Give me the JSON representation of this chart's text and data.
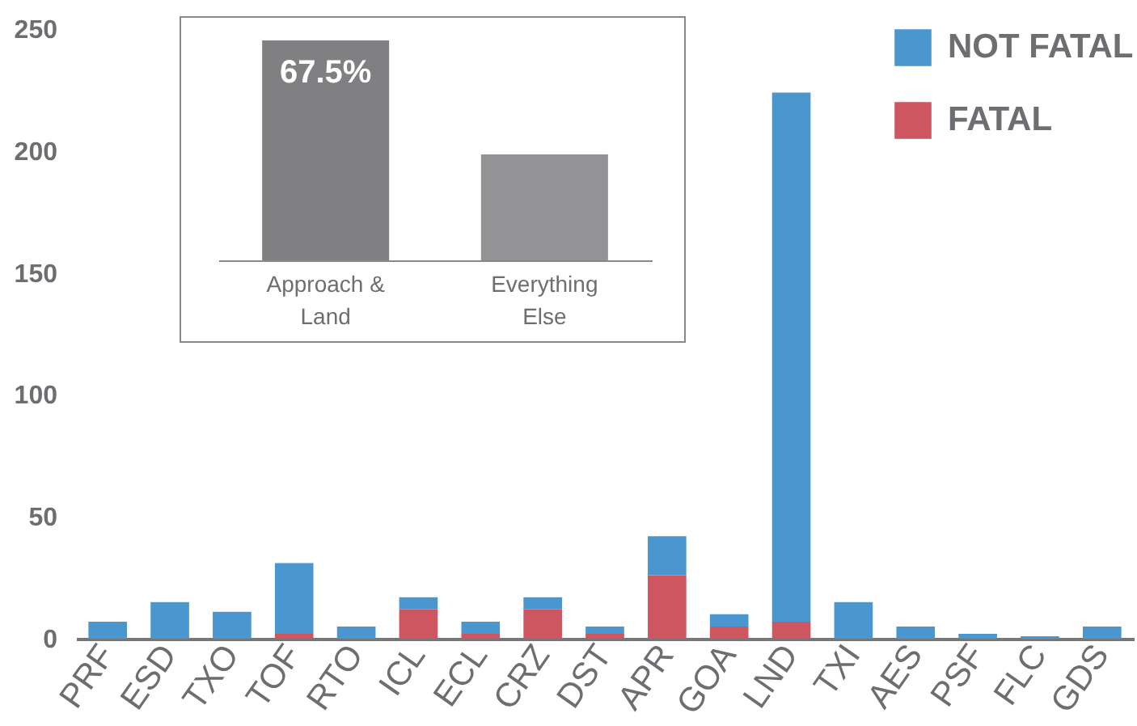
{
  "chart_data": [
    {
      "type": "bar",
      "stacked": true,
      "categories": [
        "PRF",
        "ESD",
        "TXO",
        "TOF",
        "RTO",
        "ICL",
        "ECL",
        "CRZ",
        "DST",
        "APR",
        "GOA",
        "LND",
        "TXI",
        "AES",
        "PSF",
        "FLC",
        "GDS"
      ],
      "series": [
        {
          "name": "FATAL",
          "color": "#cd5660",
          "values": [
            0,
            0,
            0,
            2,
            0,
            12,
            2,
            12,
            2,
            26,
            5,
            7,
            0,
            0,
            0,
            0,
            0
          ]
        },
        {
          "name": "NOT FATAL",
          "color": "#4a96ce",
          "values": [
            7,
            15,
            11,
            29,
            5,
            5,
            5,
            5,
            3,
            16,
            5,
            217,
            15,
            5,
            2,
            1,
            5
          ]
        }
      ],
      "ylim": [
        0,
        250
      ],
      "yticks": [
        0,
        50,
        100,
        150,
        200,
        250
      ],
      "legend": "top right"
    },
    {
      "type": "bar",
      "tick_labels": "x",
      "categories": [
        "Approach & Land",
        "Everything Else"
      ],
      "values": [
        67.5,
        32.5
      ],
      "colors": [
        "#808083",
        "#939395"
      ],
      "value_labels": [
        "67.5%",
        null
      ]
    }
  ]
}
